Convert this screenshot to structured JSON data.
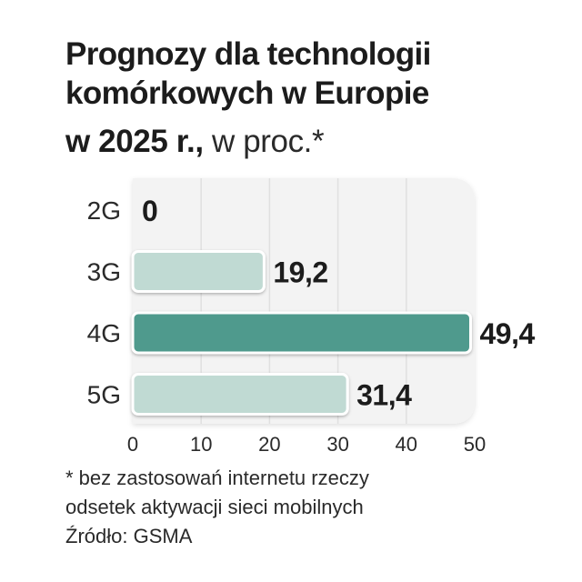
{
  "title": {
    "line1": "Prognozy dla technologii",
    "line2": "komórkowych w Europie",
    "line3_bold": "w 2025 r.,",
    "line3_light": " w proc.*"
  },
  "footnote": {
    "line1": "* bez zastosowań internetu rzeczy",
    "line2": "odsetek aktywacji sieci mobilnych",
    "source": "Źródło: GSMA"
  },
  "colors": {
    "highlight": "#4f9a8d",
    "normal": "#c0dad3",
    "plot_bg": "#f3f3f3",
    "grid": "#e0e0e0"
  },
  "chart_data": {
    "type": "bar",
    "orientation": "horizontal",
    "title": "Prognozy dla technologii komórkowych w Europie w 2025 r., w proc.*",
    "categories": [
      "2G",
      "3G",
      "4G",
      "5G"
    ],
    "values": [
      0,
      19.2,
      49.4,
      31.4
    ],
    "value_labels": [
      "0",
      "19,2",
      "49,4",
      "31,4"
    ],
    "highlight_index": 2,
    "xlim": [
      0,
      50
    ],
    "xticks": [
      0,
      10,
      20,
      30,
      40,
      50
    ],
    "xtick_labels": [
      "0",
      "10",
      "20",
      "30",
      "40",
      "50"
    ],
    "grid": true,
    "xlabel": "",
    "ylabel": ""
  }
}
